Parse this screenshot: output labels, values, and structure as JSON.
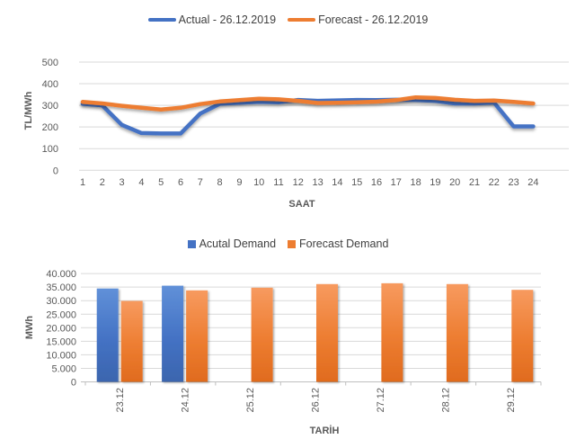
{
  "colors": {
    "actual": "#4472C4",
    "forecast": "#ED7D31",
    "grid": "#D9D9D9",
    "axis_line": "#BFBFBF",
    "axis_text": "#595959",
    "legend_text": "#404040",
    "background": "#FFFFFF"
  },
  "chart_data": [
    {
      "type": "line",
      "title": "",
      "xlabel": "SAAT",
      "ylabel": "TL/MWh",
      "x": [
        1,
        2,
        3,
        4,
        5,
        6,
        7,
        8,
        9,
        10,
        11,
        12,
        13,
        14,
        15,
        16,
        17,
        18,
        19,
        20,
        21,
        22,
        23,
        24
      ],
      "series": [
        {
          "name": "Actual - 26.12.2019",
          "color": "#4472C4",
          "values": [
            307,
            300,
            210,
            172,
            170,
            170,
            262,
            307,
            312,
            316,
            314,
            325,
            321,
            323,
            325,
            324,
            326,
            325,
            321,
            309,
            309,
            313,
            203,
            203
          ]
        },
        {
          "name": "Forecast - 26.12.2019",
          "color": "#ED7D31",
          "values": [
            316,
            309,
            298,
            289,
            281,
            289,
            306,
            318,
            324,
            331,
            328,
            321,
            311,
            312,
            314,
            317,
            324,
            337,
            334,
            326,
            321,
            322,
            316,
            309
          ]
        }
      ],
      "ylim": [
        0,
        500
      ],
      "yticks": [
        0,
        100,
        200,
        300,
        400,
        500
      ],
      "ytick_labels": [
        "0",
        "100",
        "200",
        "300",
        "400",
        "500"
      ],
      "grid": true,
      "legend_position": "top"
    },
    {
      "type": "bar",
      "title": "",
      "xlabel": "TARİH",
      "ylabel": "MWh",
      "categories": [
        "23.12",
        "24.12",
        "25.12",
        "26.12",
        "27.12",
        "28.12",
        "29.12"
      ],
      "series": [
        {
          "name": "Acutal Demand",
          "color": "#4472C4",
          "values": [
            34500,
            35500,
            null,
            null,
            null,
            null,
            null
          ]
        },
        {
          "name": "Forecast Demand",
          "color": "#ED7D31",
          "values": [
            29900,
            33800,
            34800,
            36100,
            36400,
            36100,
            34000
          ]
        }
      ],
      "ylim": [
        0,
        40000
      ],
      "yticks": [
        0,
        5000,
        10000,
        15000,
        20000,
        25000,
        30000,
        35000,
        40000
      ],
      "ytick_labels": [
        "0",
        "5.000",
        "10.000",
        "15.000",
        "20.000",
        "25.000",
        "30.000",
        "35.000",
        "40.000"
      ],
      "grid": true,
      "legend_position": "top"
    }
  ]
}
